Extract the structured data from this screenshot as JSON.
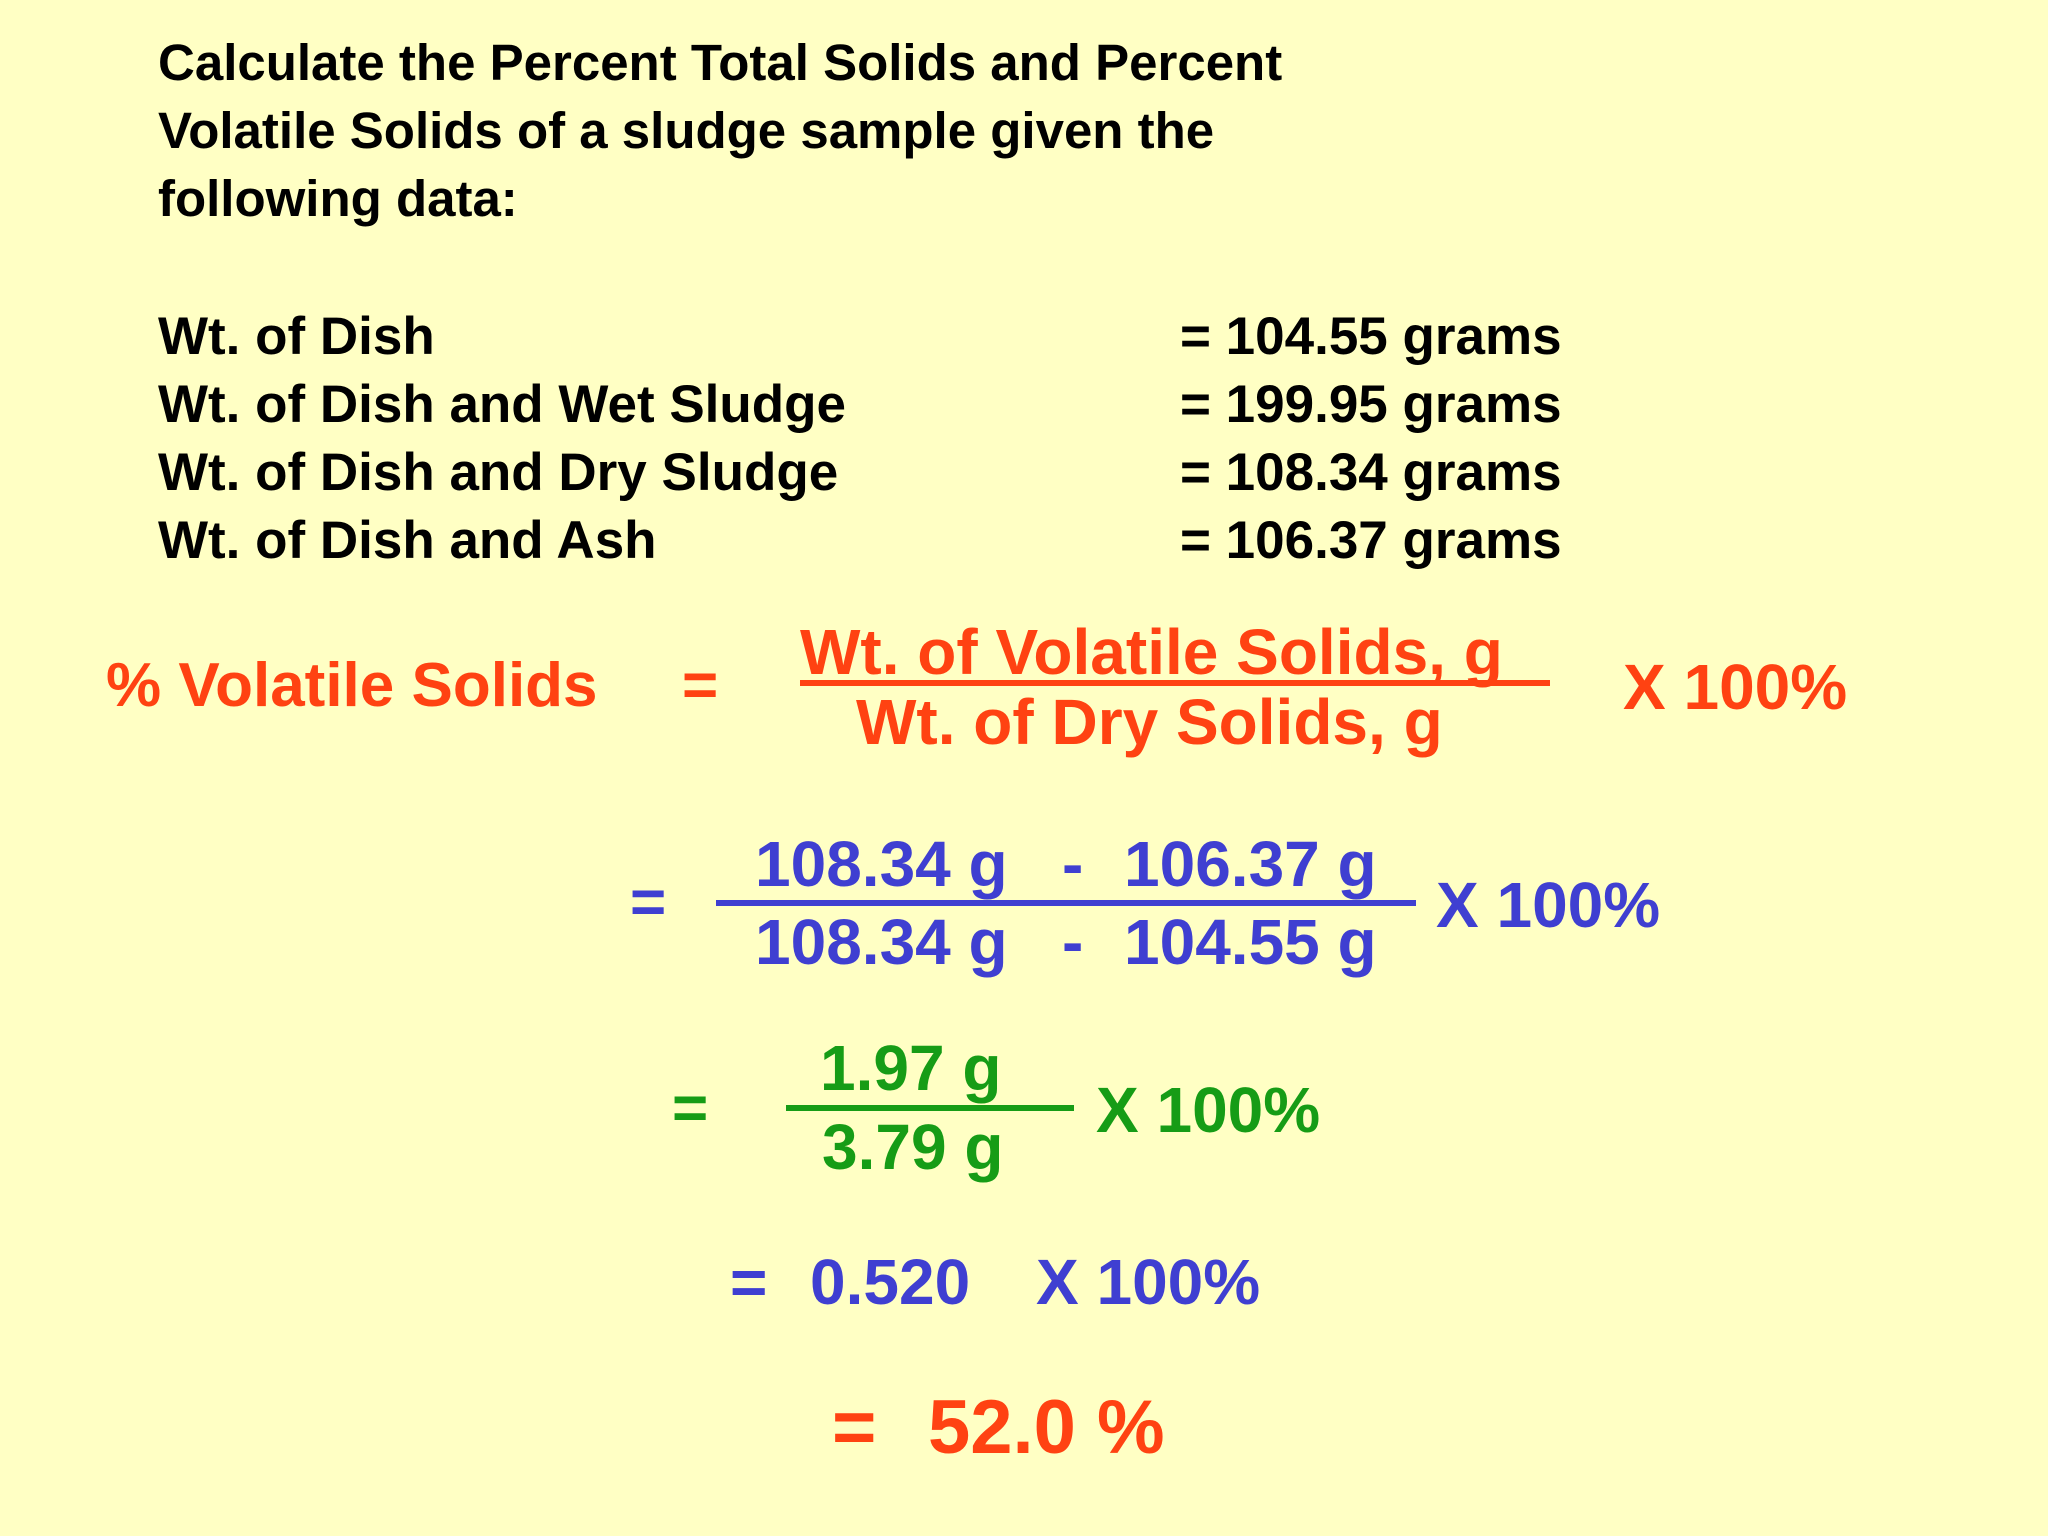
{
  "problem": {
    "lines": [
      "Calculate the Percent Total Solids and Percent",
      "Volatile Solids of a sludge sample given the",
      "following data:"
    ]
  },
  "data_table": [
    {
      "label": "Wt. of Dish",
      "value": "= 104.55 grams"
    },
    {
      "label": "Wt. of Dish and Wet Sludge",
      "value": "= 199.95 grams"
    },
    {
      "label": "Wt. of Dish and Dry Sludge",
      "value": "= 108.34 grams"
    },
    {
      "label": "Wt. of Dish and Ash",
      "value": "= 106.37 grams"
    }
  ],
  "formula": {
    "lhs": "% Volatile Solids",
    "eq": "=",
    "numerator": "Wt. of Volatile Solids, g",
    "denominator": "Wt. of Dry Solids, g",
    "multiplier": "X 100%"
  },
  "step1": {
    "eq": "=",
    "num_a": "108.34 g",
    "num_op": "-",
    "num_b": "106.37 g",
    "den_a": "108.34 g",
    "den_op": "-",
    "den_b": "104.55 g",
    "multiplier": "X 100%"
  },
  "step2": {
    "eq": "=",
    "numerator": "1.97 g",
    "denominator": "3.79 g",
    "multiplier": "X 100%"
  },
  "step3": {
    "eq": "=",
    "value": "0.520",
    "multiplier": "X 100%"
  },
  "result": {
    "eq": "=",
    "value": "52.0 %"
  },
  "colors": {
    "background": "#ffffc4",
    "text": "#000000",
    "formula": "#ff4212",
    "step_blue": "#3f3fd1",
    "step_green": "#169c16"
  }
}
